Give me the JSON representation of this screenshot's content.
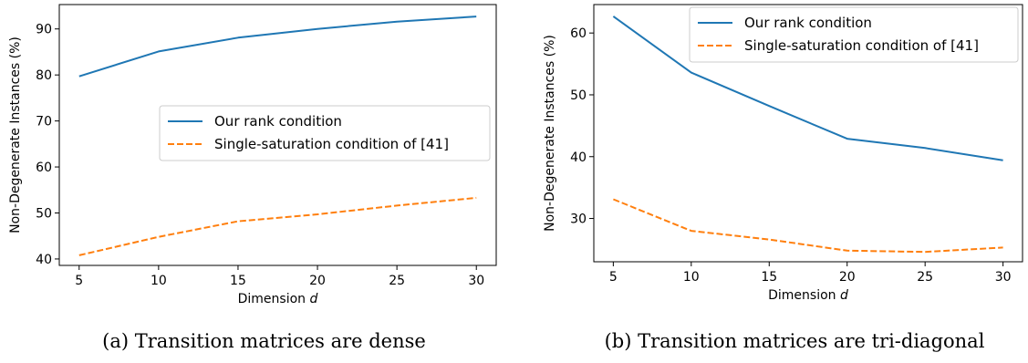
{
  "chart_data": [
    {
      "type": "line",
      "caption": "(a) Transition matrices are dense",
      "xlabel": "Dimension d",
      "ylabel": "Non-Degenerate Instances (%)",
      "x": [
        5,
        10,
        15,
        20,
        25,
        30
      ],
      "xticks": [
        5,
        10,
        15,
        20,
        25,
        30
      ],
      "yticks": [
        40,
        50,
        60,
        70,
        80,
        90
      ],
      "xlim": [
        3.75,
        31.25
      ],
      "ylim": [
        38.6,
        95.3
      ],
      "grid": false,
      "legend_position": "center-right",
      "series": [
        {
          "name": "Our rank condition",
          "color": "#1f77b4",
          "style": "solid",
          "values": [
            79.7,
            85.1,
            88.1,
            90.0,
            91.6,
            92.7
          ]
        },
        {
          "name": "Single-saturation condition of [41]",
          "color": "#ff7f0e",
          "style": "dashed",
          "values": [
            40.8,
            44.8,
            48.2,
            49.7,
            51.6,
            53.3
          ]
        }
      ]
    },
    {
      "type": "line",
      "caption": "(b) Transition matrices are tri-diagonal",
      "xlabel": "Dimension d",
      "ylabel": "Non-Degenerate Instances (%)",
      "x": [
        5,
        10,
        15,
        20,
        25,
        30
      ],
      "xticks": [
        5,
        10,
        15,
        20,
        25,
        30
      ],
      "yticks": [
        30,
        40,
        50,
        60
      ],
      "xlim": [
        3.75,
        31.25
      ],
      "ylim": [
        23.0,
        64.6
      ],
      "grid": false,
      "legend_position": "upper-right",
      "series": [
        {
          "name": "Our rank condition",
          "color": "#1f77b4",
          "style": "solid",
          "values": [
            62.7,
            53.6,
            48.2,
            42.9,
            41.4,
            39.4
          ]
        },
        {
          "name": "Single-saturation condition of [41]",
          "color": "#ff7f0e",
          "style": "dashed",
          "values": [
            33.1,
            28.0,
            26.6,
            24.8,
            24.6,
            25.3
          ]
        }
      ]
    }
  ]
}
